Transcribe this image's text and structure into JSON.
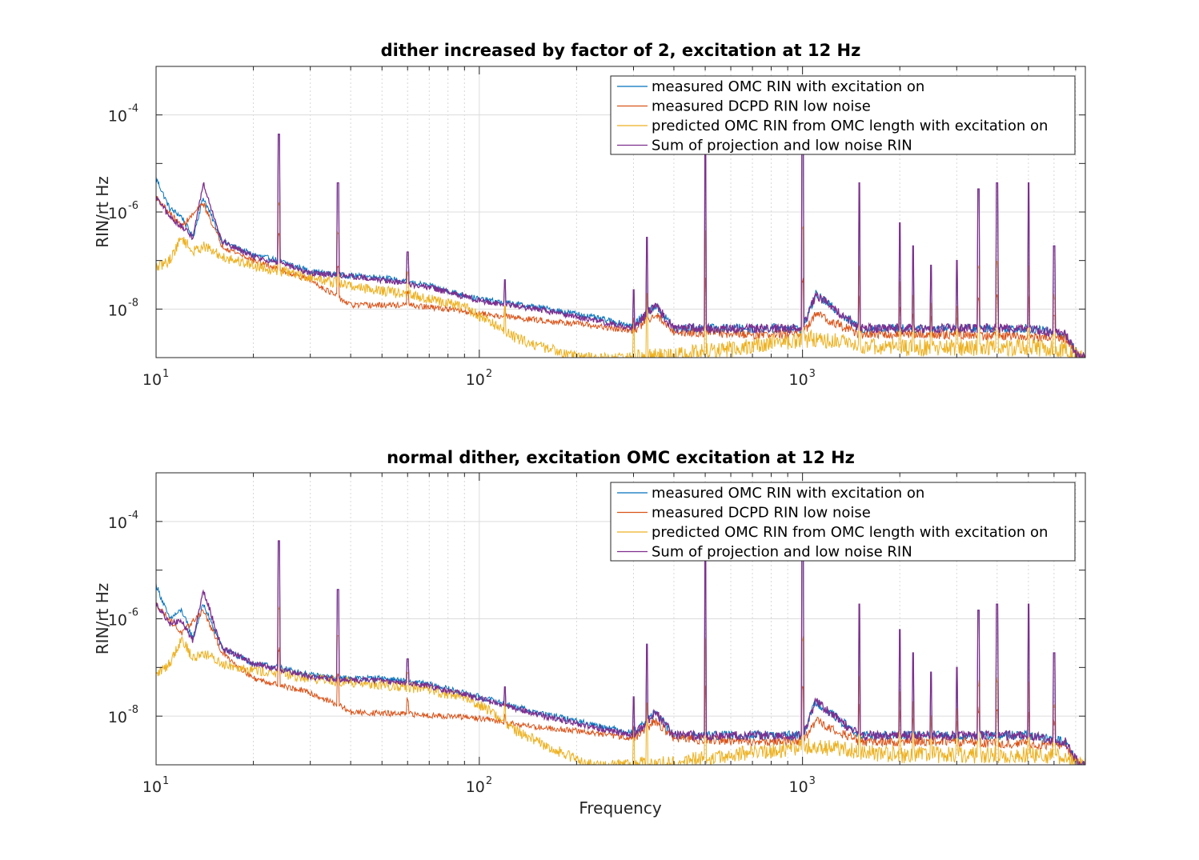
{
  "figure": {
    "xlabel": "Frequency"
  },
  "chart_data": [
    {
      "type": "line",
      "title": "dither increased by factor of 2, excitation at 12 Hz",
      "xlabel": "",
      "ylabel": "RIN/rt Hz",
      "xscale": "log",
      "yscale": "log",
      "xlim": [
        10,
        7500
      ],
      "ylim": [
        1e-09,
        0.001
      ],
      "grid": true,
      "legend": "top-right",
      "xticks": [
        {
          "base": "10",
          "exp": "1"
        },
        {
          "base": "10",
          "exp": "2"
        },
        {
          "base": "10",
          "exp": "3"
        }
      ],
      "yticks": [
        {
          "base": "10",
          "exp": "-8"
        },
        {
          "base": "10",
          "exp": "-6"
        },
        {
          "base": "10",
          "exp": "-4"
        }
      ],
      "series": [
        {
          "name": "measured OMC RIN with excitation on",
          "color": "#0072BD",
          "x": [
            10,
            11,
            12,
            13,
            14,
            16,
            20,
            24,
            30,
            37,
            50,
            70,
            100,
            150,
            200,
            300,
            350,
            400,
            700,
            1000,
            1100,
            1500,
            3000,
            5000,
            6500,
            7200
          ],
          "y": [
            5e-06,
            1.2e-06,
            8e-07,
            3e-07,
            2e-06,
            2.5e-07,
            1.3e-07,
            1e-07,
            6e-08,
            5e-08,
            4.5e-08,
            3e-08,
            1.6e-08,
            1.1e-08,
            8e-09,
            4.5e-09,
            1.2e-08,
            4e-09,
            4e-09,
            4e-09,
            2e-08,
            4e-09,
            4e-09,
            4e-09,
            3e-09,
            1e-09
          ]
        },
        {
          "name": "measured DCPD RIN low noise",
          "color": "#D95319",
          "x": [
            10,
            12,
            14,
            16,
            20,
            30,
            38,
            40,
            60,
            80,
            100,
            150,
            200,
            300,
            350,
            400,
            700,
            1000,
            1100,
            1500,
            3000,
            6500,
            7200
          ],
          "y": [
            2e-06,
            5e-07,
            1.5e-06,
            2e-07,
            1e-07,
            4e-08,
            1.5e-08,
            1.2e-08,
            1.2e-08,
            1e-08,
            8e-09,
            6e-09,
            5e-09,
            3.5e-09,
            8e-09,
            3.5e-09,
            3e-09,
            3e-09,
            8e-09,
            3e-09,
            3e-09,
            2.5e-09,
            1e-09
          ]
        },
        {
          "name": "predicted OMC RIN from OMC length with excitation on",
          "color": "#EDB120",
          "x": [
            10,
            11,
            12,
            13,
            14,
            16,
            20,
            30,
            40,
            60,
            90,
            110,
            130,
            160,
            200,
            220,
            300,
            400,
            600,
            800,
            1000,
            1100,
            1500,
            2000,
            3000,
            5000,
            6500,
            7200
          ],
          "y": [
            7e-08,
            1e-07,
            3e-07,
            1.5e-07,
            2e-07,
            1.2e-07,
            8e-08,
            4.5e-08,
            3e-08,
            2e-08,
            1.1e-08,
            5e-09,
            2.5e-09,
            1.6e-09,
            1.1e-09,
            1e-09,
            1e-09,
            1.1e-09,
            1.5e-09,
            2e-09,
            2.3e-09,
            2.5e-09,
            1.8e-09,
            1.6e-09,
            1.6e-09,
            1.6e-09,
            1.5e-09,
            1e-09
          ]
        },
        {
          "name": "Sum of projection and low noise RIN",
          "color": "#7E2F8E",
          "x": [
            10,
            11,
            12,
            13,
            14,
            16,
            20,
            24,
            30,
            37,
            50,
            70,
            100,
            150,
            200,
            300,
            350,
            400,
            700,
            1000,
            1100,
            1500,
            3000,
            5000,
            6500,
            7200
          ],
          "y": [
            2e-06,
            8e-07,
            5e-07,
            3e-07,
            4e-06,
            2.5e-07,
            1.2e-07,
            9e-08,
            5.5e-08,
            5e-08,
            4e-08,
            2.8e-08,
            1.5e-08,
            1e-08,
            7e-09,
            4e-09,
            1.2e-08,
            4e-09,
            4e-09,
            4e-09,
            2e-08,
            4e-09,
            4e-09,
            4e-09,
            3e-09,
            1e-09
          ]
        }
      ],
      "lines_peaks": [
        {
          "freq": 24,
          "height": 4e-05
        },
        {
          "freq": 36.5,
          "height": 4e-06
        },
        {
          "freq": 60,
          "height": 1.5e-07
        },
        {
          "freq": 120,
          "height": 4e-08
        },
        {
          "freq": 300,
          "height": 2.5e-08
        },
        {
          "freq": 330,
          "height": 3e-07
        },
        {
          "freq": 500,
          "height": 0.0001
        },
        {
          "freq": 1000,
          "height": 8e-05
        },
        {
          "freq": 1500,
          "height": 4e-06
        },
        {
          "freq": 2000,
          "height": 6e-07
        },
        {
          "freq": 2200,
          "height": 2e-07
        },
        {
          "freq": 2500,
          "height": 8e-08
        },
        {
          "freq": 3000,
          "height": 1e-07
        },
        {
          "freq": 3500,
          "height": 3e-06
        },
        {
          "freq": 4000,
          "height": 4e-06
        },
        {
          "freq": 5000,
          "height": 4e-06
        },
        {
          "freq": 6000,
          "height": 2e-07
        }
      ]
    },
    {
      "type": "line",
      "title": "normal dither, excitation OMC excitation at 12 Hz",
      "xlabel": "Frequency",
      "ylabel": "RIN/rt Hz",
      "xscale": "log",
      "yscale": "log",
      "xlim": [
        10,
        7500
      ],
      "ylim": [
        1e-09,
        0.001
      ],
      "grid": true,
      "legend": "top-right",
      "xticks": [
        {
          "base": "10",
          "exp": "1"
        },
        {
          "base": "10",
          "exp": "2"
        },
        {
          "base": "10",
          "exp": "3"
        }
      ],
      "yticks": [
        {
          "base": "10",
          "exp": "-8"
        },
        {
          "base": "10",
          "exp": "-6"
        },
        {
          "base": "10",
          "exp": "-4"
        }
      ],
      "series": [
        {
          "name": "measured OMC RIN with excitation on",
          "color": "#0072BD",
          "x": [
            10,
            11,
            12,
            13,
            14,
            16,
            20,
            24,
            30,
            37,
            50,
            70,
            100,
            150,
            200,
            300,
            350,
            400,
            700,
            1000,
            1100,
            1500,
            3000,
            5000,
            6500,
            7200
          ],
          "y": [
            5e-06,
            1e-06,
            1.5e-06,
            4e-07,
            2e-06,
            2.5e-07,
            1.2e-07,
            1e-07,
            7e-08,
            6e-08,
            6e-08,
            4.5e-08,
            2.5e-08,
            1.2e-08,
            8e-09,
            4.5e-09,
            1.2e-08,
            4e-09,
            4e-09,
            4e-09,
            2e-08,
            4e-09,
            4e-09,
            4e-09,
            3e-09,
            1e-09
          ]
        },
        {
          "name": "measured DCPD RIN low noise",
          "color": "#D95319",
          "x": [
            10,
            12,
            14,
            16,
            20,
            30,
            38,
            40,
            60,
            80,
            100,
            150,
            200,
            300,
            350,
            400,
            700,
            1000,
            1100,
            1500,
            3000,
            6500,
            7200
          ],
          "y": [
            2e-06,
            5e-07,
            1.5e-06,
            2e-07,
            6e-08,
            3e-08,
            1.5e-08,
            1.2e-08,
            1.1e-08,
            1e-08,
            9e-09,
            6e-09,
            5e-09,
            3.5e-09,
            8e-09,
            3.5e-09,
            3e-09,
            3e-09,
            8e-09,
            3e-09,
            3e-09,
            2.5e-09,
            1e-09
          ]
        },
        {
          "name": "predicted OMC RIN from OMC length with excitation on",
          "color": "#EDB120",
          "x": [
            10,
            11,
            12,
            13,
            14,
            16,
            20,
            30,
            40,
            60,
            90,
            110,
            130,
            160,
            200,
            220,
            300,
            400,
            600,
            800,
            1000,
            1100,
            1500,
            2000,
            3000,
            5000,
            6500,
            7200
          ],
          "y": [
            7e-08,
            1.2e-07,
            4e-07,
            1.5e-07,
            2e-07,
            1.2e-07,
            9e-08,
            6e-08,
            5e-08,
            4e-08,
            2.5e-08,
            1.2e-08,
            5e-09,
            2.5e-09,
            1.3e-09,
            1e-09,
            1e-09,
            1.1e-09,
            1.5e-09,
            2e-09,
            2.3e-09,
            2.5e-09,
            1.8e-09,
            1.6e-09,
            1.6e-09,
            1.6e-09,
            1.5e-09,
            1e-09
          ]
        },
        {
          "name": "Sum of projection and low noise RIN",
          "color": "#7E2F8E",
          "x": [
            10,
            11,
            12,
            13,
            14,
            16,
            20,
            24,
            30,
            37,
            50,
            70,
            100,
            150,
            200,
            300,
            350,
            400,
            700,
            1000,
            1100,
            1500,
            3000,
            5000,
            6500,
            7200
          ],
          "y": [
            2e-06,
            8e-07,
            9e-07,
            3.5e-07,
            4e-06,
            2.5e-07,
            1.2e-07,
            9e-08,
            6.5e-08,
            5.5e-08,
            5.5e-08,
            4.2e-08,
            2.3e-08,
            1.1e-08,
            7e-09,
            4e-09,
            1.2e-08,
            4e-09,
            4e-09,
            4e-09,
            2e-08,
            4e-09,
            4e-09,
            4e-09,
            3e-09,
            1e-09
          ]
        }
      ],
      "lines_peaks": [
        {
          "freq": 24,
          "height": 4e-05
        },
        {
          "freq": 36.5,
          "height": 4e-06
        },
        {
          "freq": 60,
          "height": 1.5e-07
        },
        {
          "freq": 120,
          "height": 4e-08
        },
        {
          "freq": 300,
          "height": 2.5e-08
        },
        {
          "freq": 330,
          "height": 3e-07
        },
        {
          "freq": 500,
          "height": 0.0001
        },
        {
          "freq": 1000,
          "height": 8e-05
        },
        {
          "freq": 1500,
          "height": 2e-06
        },
        {
          "freq": 2000,
          "height": 6e-07
        },
        {
          "freq": 2200,
          "height": 2e-07
        },
        {
          "freq": 2500,
          "height": 8e-08
        },
        {
          "freq": 3000,
          "height": 1e-07
        },
        {
          "freq": 3500,
          "height": 1.5e-06
        },
        {
          "freq": 4000,
          "height": 2e-06
        },
        {
          "freq": 5000,
          "height": 2e-06
        },
        {
          "freq": 6000,
          "height": 2e-07
        }
      ]
    }
  ]
}
